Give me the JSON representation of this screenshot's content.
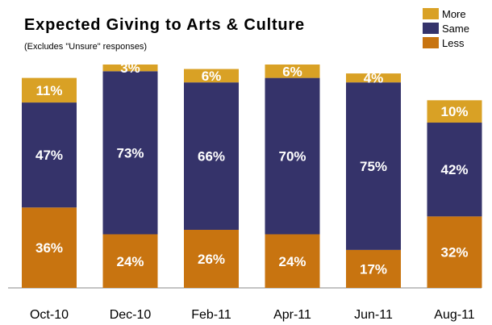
{
  "chart_data": {
    "type": "bar",
    "stacked": true,
    "title": "Expected Giving to Arts & Culture",
    "subtitle": "(Excludes \"Unsure\" responses)",
    "categories": [
      "Oct-10",
      "Dec-10",
      "Feb-11",
      "Apr-11",
      "Jun-11",
      "Aug-11"
    ],
    "series": [
      {
        "name": "Less",
        "color": "#c87410",
        "values": [
          36,
          24,
          26,
          24,
          17,
          32
        ]
      },
      {
        "name": "Same",
        "color": "#35336a",
        "values": [
          47,
          73,
          66,
          70,
          75,
          42
        ]
      },
      {
        "name": "More",
        "color": "#d9a125",
        "values": [
          11,
          3,
          6,
          6,
          4,
          10
        ]
      }
    ],
    "legend_order": [
      "More",
      "Same",
      "Less"
    ],
    "legend_position": "top-right",
    "ylim": [
      0,
      100
    ],
    "grid": false
  }
}
